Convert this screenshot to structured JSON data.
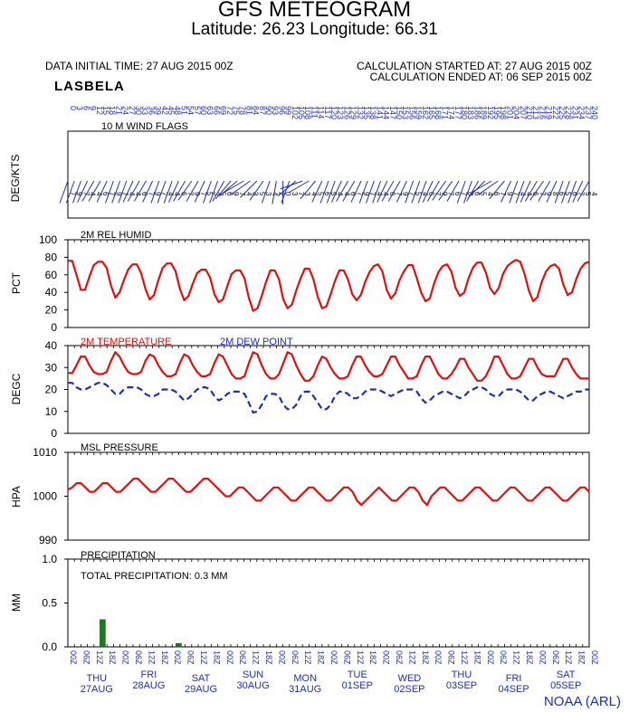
{
  "header": {
    "title": "GFS METEOGRAM",
    "subtitle": "Latitude: 26.23 Longitude:  66.31",
    "init_time": "DATA INITIAL TIME: 27 AUG 2015 00Z",
    "calc_start": "CALCULATION STARTED AT: 27 AUG 2015 00Z",
    "calc_end": "CALCULATION ENDED AT: 06 SEP 2015 00Z",
    "station": "LASBELA"
  },
  "footer": {
    "credit": "NOAA (ARL)"
  },
  "colors": {
    "red": "#e01010",
    "blue": "#1f2fb3",
    "green": "#1c7a1c",
    "frame": "#000000"
  },
  "chart_data": [
    {
      "type": "line",
      "title": "10 M  WIND FLAGS",
      "ylabel": "DEG/KTS",
      "x": [
        0,
        3,
        6,
        9,
        12,
        15,
        18,
        21,
        24,
        27,
        30,
        33,
        36,
        39,
        42,
        45,
        48,
        51,
        54,
        57,
        60,
        63,
        66,
        69,
        72,
        75,
        78,
        81,
        84,
        87,
        90,
        93,
        96,
        99,
        102,
        105,
        108,
        111,
        114,
        117,
        120,
        123,
        126,
        129,
        132,
        135,
        138,
        141,
        144,
        147,
        150,
        153,
        156,
        159,
        162,
        165,
        168,
        171,
        174,
        177,
        180,
        183,
        186,
        189,
        192,
        195,
        198,
        201,
        204,
        207,
        210,
        213,
        216,
        219,
        222,
        225,
        228,
        231,
        234,
        237,
        240
      ],
      "direction_deg": [
        200,
        200,
        200,
        205,
        210,
        210,
        205,
        200,
        200,
        200,
        205,
        210,
        210,
        205,
        200,
        200,
        200,
        205,
        210,
        215,
        210,
        205,
        200,
        200,
        210,
        220,
        230,
        240,
        235,
        225,
        215,
        200,
        190,
        180,
        200,
        230,
        250,
        240,
        220,
        205,
        200,
        200,
        205,
        210,
        210,
        205,
        200,
        200,
        200,
        205,
        210,
        210,
        205,
        200,
        200,
        200,
        205,
        210,
        215,
        215,
        210,
        200,
        200,
        210,
        225,
        240,
        235,
        220,
        205,
        200,
        200,
        205,
        210,
        215,
        210,
        205,
        200,
        200,
        200,
        205,
        210
      ],
      "speed_kts": [
        7,
        9,
        7,
        4,
        4,
        6,
        7,
        9,
        7,
        4,
        4,
        6,
        7,
        9,
        7,
        4,
        4,
        6,
        7,
        9,
        7,
        5,
        3,
        5,
        6,
        9,
        7,
        4,
        3,
        5,
        3,
        4,
        2,
        0,
        3,
        7,
        3,
        4,
        5,
        6,
        5,
        4,
        4,
        6,
        7,
        9,
        7,
        4,
        4,
        6,
        7,
        9,
        7,
        5,
        4,
        6,
        7,
        9,
        7,
        6,
        7,
        8,
        6,
        5,
        4,
        6,
        7,
        9,
        7,
        4,
        4,
        6,
        7,
        9,
        8,
        6,
        5,
        6,
        7,
        5,
        4
      ],
      "tick_labels": [
        "0",
        "3",
        "6",
        "9",
        "12",
        "15",
        "18",
        "21",
        "24",
        "27",
        "30",
        "33",
        "36",
        "39",
        "42",
        "45",
        "48",
        "51",
        "54",
        "57",
        "60",
        "63",
        "66",
        "69",
        "72",
        "75",
        "78",
        "81",
        "84",
        "87",
        "90",
        "93",
        "96",
        "99",
        "102",
        "105",
        "108",
        "111",
        "114",
        "117",
        "120",
        "123",
        "126",
        "129",
        "132",
        "135",
        "138",
        "141",
        "144",
        "147",
        "150",
        "153",
        "156",
        "159",
        "162",
        "165",
        "168",
        "171",
        "174",
        "177",
        "180",
        "183",
        "186",
        "189",
        "192",
        "195",
        "198",
        "201",
        "204",
        "207",
        "210",
        "213",
        "216",
        "219",
        "222",
        "225",
        "228",
        "231",
        "234",
        "237",
        "240"
      ]
    },
    {
      "type": "line",
      "title": "2M REL HUMID",
      "ylabel": "PCT",
      "ylim": [
        0,
        100
      ],
      "yticks": [
        "0",
        "20",
        "40",
        "60",
        "80",
        "100"
      ],
      "series": [
        {
          "values": [
            76,
            76,
            60,
            43,
            43,
            58,
            71,
            75,
            75,
            68,
            48,
            34,
            40,
            54,
            66,
            72,
            72,
            62,
            44,
            32,
            37,
            54,
            68,
            73,
            73,
            64,
            44,
            31,
            36,
            50,
            62,
            66,
            66,
            57,
            38,
            29,
            32,
            47,
            61,
            65,
            65,
            56,
            34,
            19,
            22,
            36,
            52,
            65,
            65,
            55,
            32,
            22,
            26,
            42,
            56,
            67,
            67,
            55,
            35,
            22,
            24,
            38,
            53,
            65,
            65,
            55,
            38,
            31,
            37,
            52,
            63,
            70,
            72,
            64,
            43,
            33,
            39,
            54,
            64,
            71,
            71,
            56,
            40,
            30,
            33,
            50,
            63,
            70,
            72,
            64,
            45,
            36,
            40,
            56,
            68,
            74,
            74,
            63,
            45,
            38,
            45,
            61,
            70,
            74,
            77,
            75,
            61,
            42,
            30,
            35,
            52,
            64,
            70,
            72,
            67,
            49,
            37,
            40,
            55,
            67,
            73,
            75
          ]
        }
      ]
    },
    {
      "type": "line",
      "title": "2M TEMPERATURE",
      "ylabel": "DEGC",
      "ylim": [
        0,
        40
      ],
      "yticks": [
        "0",
        "10",
        "20",
        "30",
        "40"
      ],
      "series": [
        {
          "name": "2M TEMPERATURE",
          "values": [
            27.5,
            27.5,
            31,
            35,
            35,
            31,
            28,
            27,
            27,
            28,
            33,
            37,
            35,
            31,
            28,
            27,
            27,
            28,
            33,
            36,
            35,
            31,
            28,
            26,
            26,
            27,
            32,
            36,
            35,
            31,
            28,
            26,
            26,
            27,
            32,
            36,
            35,
            31,
            27,
            25,
            25,
            26,
            32,
            37,
            36,
            31,
            27,
            25,
            25,
            27,
            32,
            37,
            36,
            31,
            27,
            24,
            24,
            26,
            31,
            35,
            34,
            30,
            27,
            25,
            25,
            26,
            31,
            35,
            35,
            31,
            28,
            26,
            26,
            27,
            31,
            35,
            35,
            31,
            28,
            25,
            25,
            26,
            31,
            35,
            35,
            31,
            27,
            25,
            25,
            27,
            30,
            34,
            34,
            30,
            27,
            24,
            24,
            26,
            30,
            35,
            35,
            31,
            27,
            25,
            25,
            26,
            30,
            34,
            34,
            30,
            27,
            26,
            26,
            26,
            30,
            34,
            34,
            30,
            27,
            25,
            25,
            25
          ]
        },
        {
          "name": "2M  DEW POINT",
          "values": [
            23,
            23,
            21,
            20,
            20,
            21,
            22,
            23,
            23,
            22,
            20,
            18,
            18,
            20,
            21,
            21,
            21,
            20,
            18,
            17,
            17,
            18,
            20,
            20,
            20,
            19,
            17,
            15,
            16,
            18,
            20,
            21,
            21,
            20,
            17,
            15,
            16,
            18,
            19,
            19,
            19,
            18,
            14,
            9.5,
            10,
            13,
            17,
            18,
            18,
            17,
            13,
            11,
            11,
            13,
            17,
            19,
            19,
            17,
            14,
            11,
            11,
            13,
            17,
            19,
            19,
            18,
            16,
            16,
            17,
            19,
            20,
            20,
            20,
            19,
            18,
            17,
            18,
            19,
            20,
            20,
            20,
            19,
            16,
            14,
            15,
            17,
            18,
            19,
            19,
            18,
            17,
            16,
            17,
            19,
            20,
            21,
            21,
            20,
            18,
            17,
            17,
            19,
            20,
            20,
            20,
            19,
            17,
            15,
            15,
            17,
            18,
            19,
            19,
            18,
            17,
            16,
            17,
            18,
            19,
            19,
            20,
            20
          ]
        }
      ]
    },
    {
      "type": "line",
      "title": "MSL PRESSURE",
      "ylabel": "HPA",
      "ylim": [
        990,
        1010
      ],
      "yticks": [
        "990",
        "1000",
        "1010"
      ],
      "series": [
        {
          "values": [
            1001.5,
            1002,
            1003,
            1003,
            1002,
            1001,
            1001,
            1002,
            1003,
            1003,
            1002,
            1001,
            1001,
            1002,
            1003,
            1004,
            1004,
            1003,
            1002,
            1001,
            1001,
            1002,
            1003,
            1004,
            1004,
            1003,
            1002,
            1001,
            1001,
            1002,
            1003,
            1004,
            1004,
            1003,
            1002,
            1001,
            1000,
            1000,
            1001,
            1002,
            1002,
            1001,
            1000,
            999,
            999,
            1000,
            1001,
            1002,
            1002,
            1001,
            1000,
            999,
            999,
            1000,
            1001,
            1002,
            1002,
            1001,
            1000,
            999,
            999,
            1000,
            1001,
            1002,
            1002,
            1001,
            999,
            998,
            999,
            1000,
            1001,
            1002,
            1001,
            1000,
            999,
            999,
            1000,
            1001,
            1002,
            1002,
            1001,
            999,
            998,
            1000,
            1001,
            1002,
            1002,
            1001,
            1000,
            999,
            999,
            1000,
            1001,
            1002,
            1002,
            1001,
            1000,
            999,
            999,
            1000,
            1001,
            1002,
            1002,
            1001,
            1000,
            999,
            999,
            1000,
            1001,
            1002,
            1002,
            1001,
            1000,
            999,
            999,
            1000,
            1001,
            1002,
            1002,
            1001
          ]
        }
      ]
    },
    {
      "type": "bar",
      "title": "PRECIPITATION",
      "ylabel": "MM",
      "ylim": [
        0,
        1.0
      ],
      "yticks": [
        "0.0",
        "0.5",
        "1.0"
      ],
      "annotation": "TOTAL PRECIPITATION:   0.3 MM",
      "bars": [
        {
          "hour": 16,
          "value": 0.31
        },
        {
          "hour": 51,
          "value": 0.04
        }
      ]
    }
  ],
  "x_axis": {
    "hour_labels": [
      "00Z",
      "06Z",
      "12Z",
      "18Z",
      "00Z",
      "06Z",
      "12Z",
      "18Z",
      "00Z",
      "06Z",
      "12Z",
      "18Z",
      "00Z",
      "06Z",
      "12Z",
      "18Z",
      "00Z",
      "06Z",
      "12Z",
      "18Z",
      "00Z",
      "06Z",
      "12Z",
      "18Z",
      "00Z",
      "06Z",
      "12Z",
      "18Z",
      "00Z",
      "06Z",
      "12Z",
      "18Z",
      "00Z",
      "06Z",
      "12Z",
      "18Z",
      "00Z",
      "06Z",
      "12Z",
      "18Z",
      "00Z"
    ],
    "days": [
      {
        "dow": "THU",
        "date": "27AUG"
      },
      {
        "dow": "FRI",
        "date": "28AUG"
      },
      {
        "dow": "SAT",
        "date": "29AUG"
      },
      {
        "dow": "SUN",
        "date": "30AUG"
      },
      {
        "dow": "MON",
        "date": "31AUG"
      },
      {
        "dow": "TUE",
        "date": "01SEP"
      },
      {
        "dow": "WED",
        "date": "02SEP"
      },
      {
        "dow": "THU",
        "date": "03SEP"
      },
      {
        "dow": "FRI",
        "date": "04SEP"
      },
      {
        "dow": "SAT",
        "date": "05SEP"
      }
    ]
  }
}
